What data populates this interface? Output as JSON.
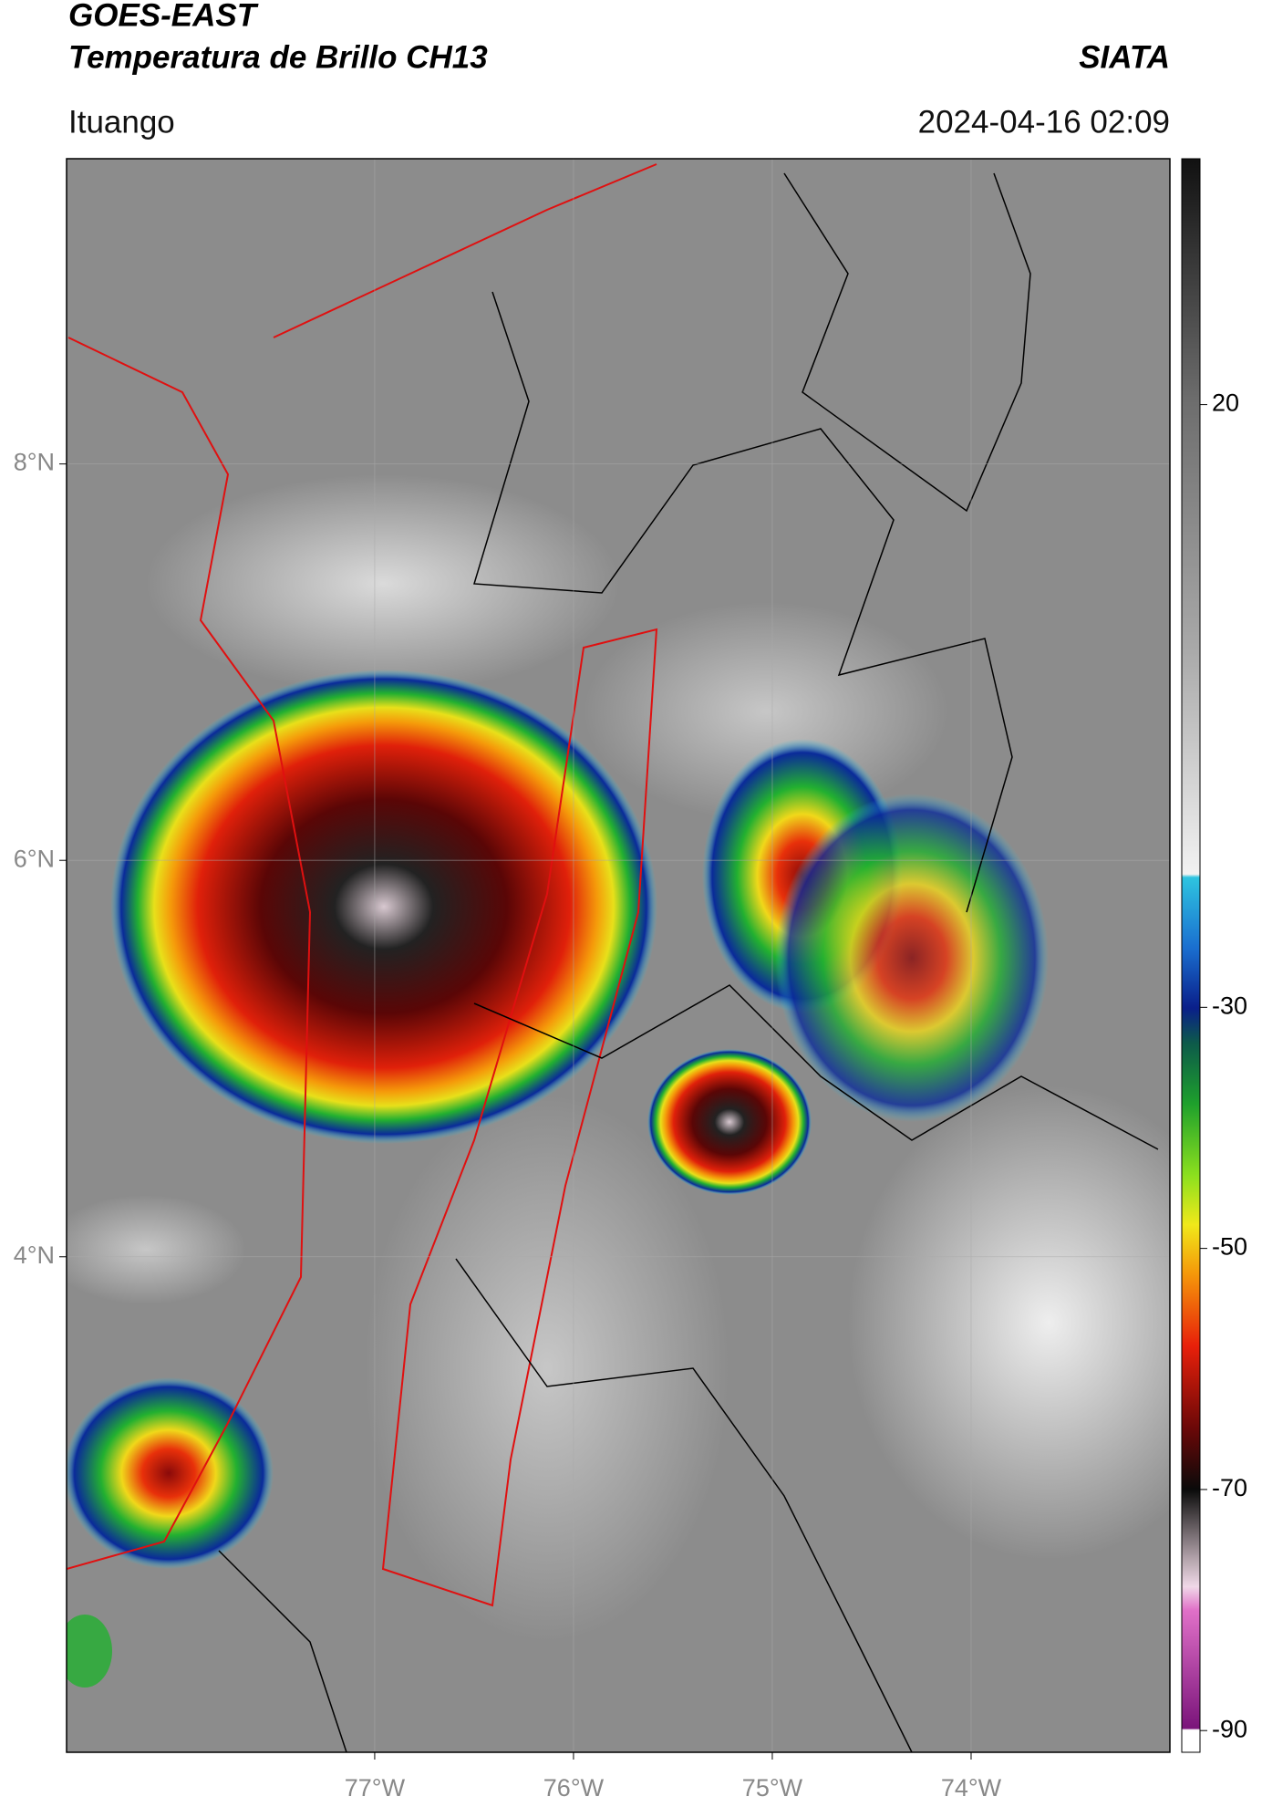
{
  "header": {
    "title": "GOES-EAST",
    "subtitle": "Temperatura de Brillo CH13",
    "agency": "SIATA",
    "location": "Ituango",
    "timestamp": "2024-04-16 02:09"
  },
  "map": {
    "xlim": [
      -78.55,
      -73.0
    ],
    "ylim": [
      1.5,
      9.54
    ],
    "xticks": [
      {
        "value": -77,
        "label": "77°W"
      },
      {
        "value": -76,
        "label": "76°W"
      },
      {
        "value": -75,
        "label": "75°W"
      },
      {
        "value": -74,
        "label": "74°W"
      }
    ],
    "yticks": [
      {
        "value": 4,
        "label": "4°N"
      },
      {
        "value": 6,
        "label": "6°N"
      },
      {
        "value": 8,
        "label": "8°N"
      }
    ],
    "grid": true
  },
  "colorbar": {
    "lim": [
      -91.8,
      40.4
    ],
    "ticks": [
      -90,
      -70,
      -50,
      -30,
      20
    ]
  }
}
